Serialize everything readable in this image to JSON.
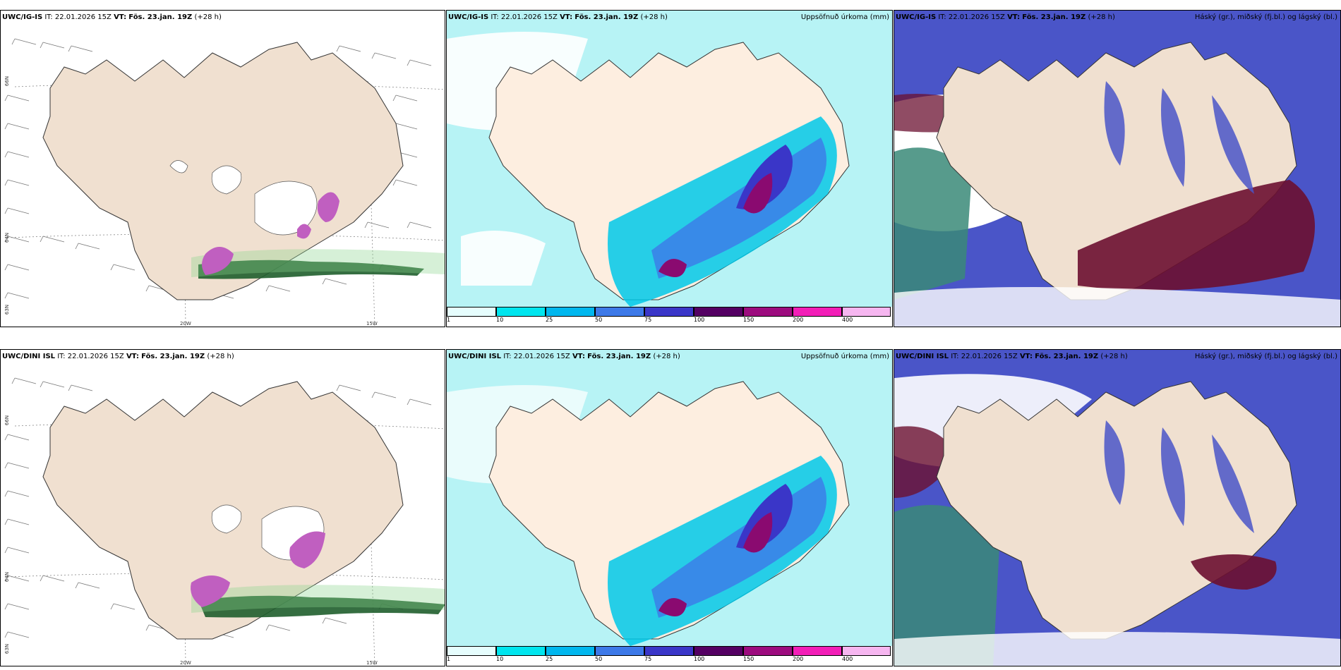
{
  "rows": [
    {
      "model": "UWC/IG-IS",
      "it": "IT: 22.01.2026 15Z",
      "vt_label": "VT:",
      "vt": "Fös. 23.jan. 19Z",
      "lead": "(+28 h)"
    },
    {
      "model": "UWC/DINI ISL",
      "it": "IT: 22.01.2026 15Z",
      "vt_label": "VT:",
      "vt": "Fös. 23.jan. 19Z",
      "lead": "(+28 h)"
    }
  ],
  "panels": {
    "precip_title": "Uppsöfnuð úrkoma (mm)",
    "cloud_title": "Háský (gr.), miðský (fj.bl.) og lágský (bl.)"
  },
  "axes": {
    "lat_66": "66N",
    "lat_64": "64N",
    "lat_63": "63N",
    "lon_20": "20W",
    "lon_15": "15W"
  },
  "colorbar": {
    "ticks": [
      "1",
      "10",
      "25",
      "50",
      "75",
      "100",
      "150",
      "200",
      "400"
    ],
    "colors": [
      "#e6fdfd",
      "#00e5ee",
      "#00b7ee",
      "#3d79e8",
      "#3a36c8",
      "#540063",
      "#9c0b7e",
      "#f21eb7",
      "#f6b6f0"
    ]
  },
  "colors": {
    "land": "#f0e0d0",
    "sea": "#ffffff",
    "precip_light": "#b7f3f5",
    "precip_mid": "#00c8e8",
    "precip_heavy": "#3d4fd0",
    "precip_max": "#8a0a70",
    "cloud_high": "#6b1030",
    "cloud_mid": "#4a55c8",
    "cloud_low": "#3a8a78"
  }
}
